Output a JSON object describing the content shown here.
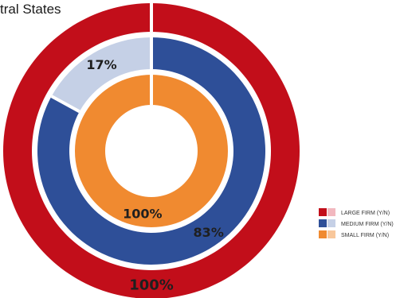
{
  "header": {
    "title_fragment": "tral States"
  },
  "chart_data": {
    "type": "pie",
    "variant": "nested-donut",
    "title": "",
    "rings": [
      {
        "name": "LARGE FIRM (Y/N)",
        "yes_percent": 100,
        "label": "100%",
        "yes_color": "#c20e1a",
        "no_color": "#f2b8bf"
      },
      {
        "name": "MEDIUM FIRM (Y/N)",
        "yes_percent": 83,
        "label": "83%",
        "no_label": "17%",
        "yes_color": "#2e4f98",
        "no_color": "#c5d0e6"
      },
      {
        "name": "SMALL FIRM (Y/N)",
        "yes_percent": 100,
        "label": "100%",
        "yes_color": "#f08a30",
        "no_color": "#f8c79b"
      }
    ],
    "legend": {
      "position": "right",
      "entries": [
        "LARGE FIRM (Y/N)",
        "MEDIUM FIRM (Y/N)",
        "SMALL FIRM (Y/N)"
      ]
    }
  }
}
